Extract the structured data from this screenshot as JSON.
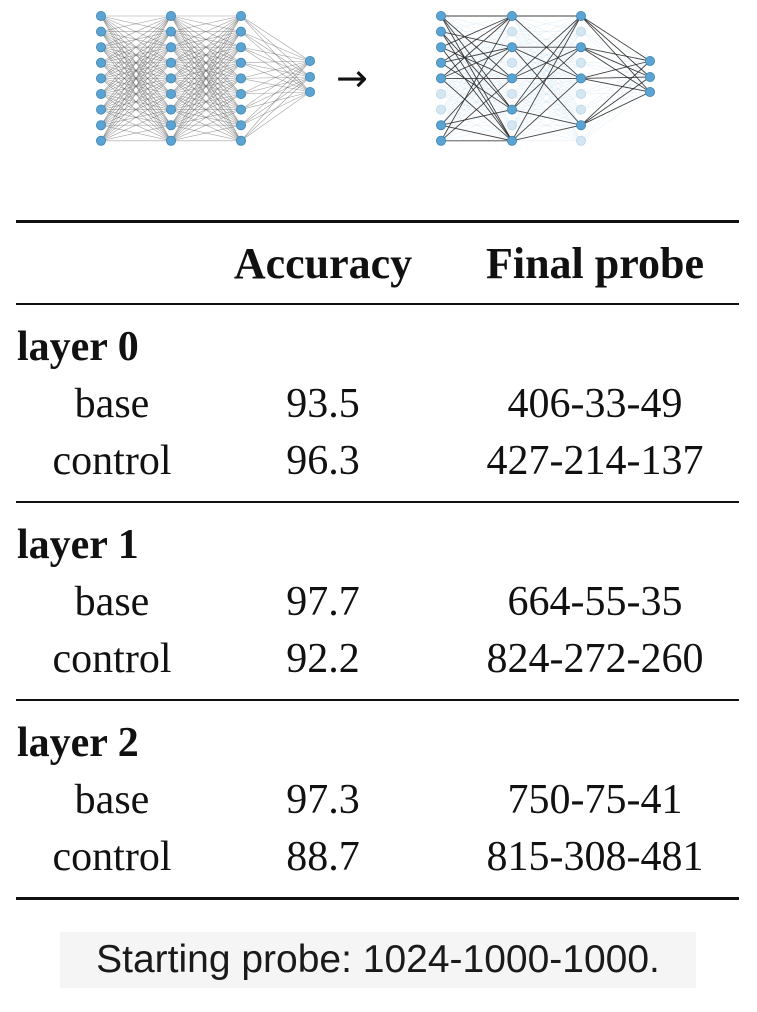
{
  "figure": {
    "arrow": "→",
    "colors": {
      "node": "#5ba3d0",
      "node_pruned": "#d4e6f1",
      "edge": "#222222",
      "edge_pruned": "#b8d8ea"
    }
  },
  "table": {
    "headers": {
      "empty": "",
      "accuracy": "Accuracy",
      "final_probe": "Final probe"
    },
    "groups": [
      {
        "label": "layer 0",
        "rows": [
          {
            "name": "base",
            "accuracy": "93.5",
            "final_probe": "406-33-49"
          },
          {
            "name": "control",
            "accuracy": "96.3",
            "final_probe": "427-214-137"
          }
        ]
      },
      {
        "label": "layer 1",
        "rows": [
          {
            "name": "base",
            "accuracy": "97.7",
            "final_probe": "664-55-35"
          },
          {
            "name": "control",
            "accuracy": "92.2",
            "final_probe": "824-272-260"
          }
        ]
      },
      {
        "label": "layer 2",
        "rows": [
          {
            "name": "base",
            "accuracy": "97.3",
            "final_probe": "750-75-41"
          },
          {
            "name": "control",
            "accuracy": "88.7",
            "final_probe": "815-308-481"
          }
        ]
      }
    ]
  },
  "caption": "Starting probe: 1024-1000-1000."
}
